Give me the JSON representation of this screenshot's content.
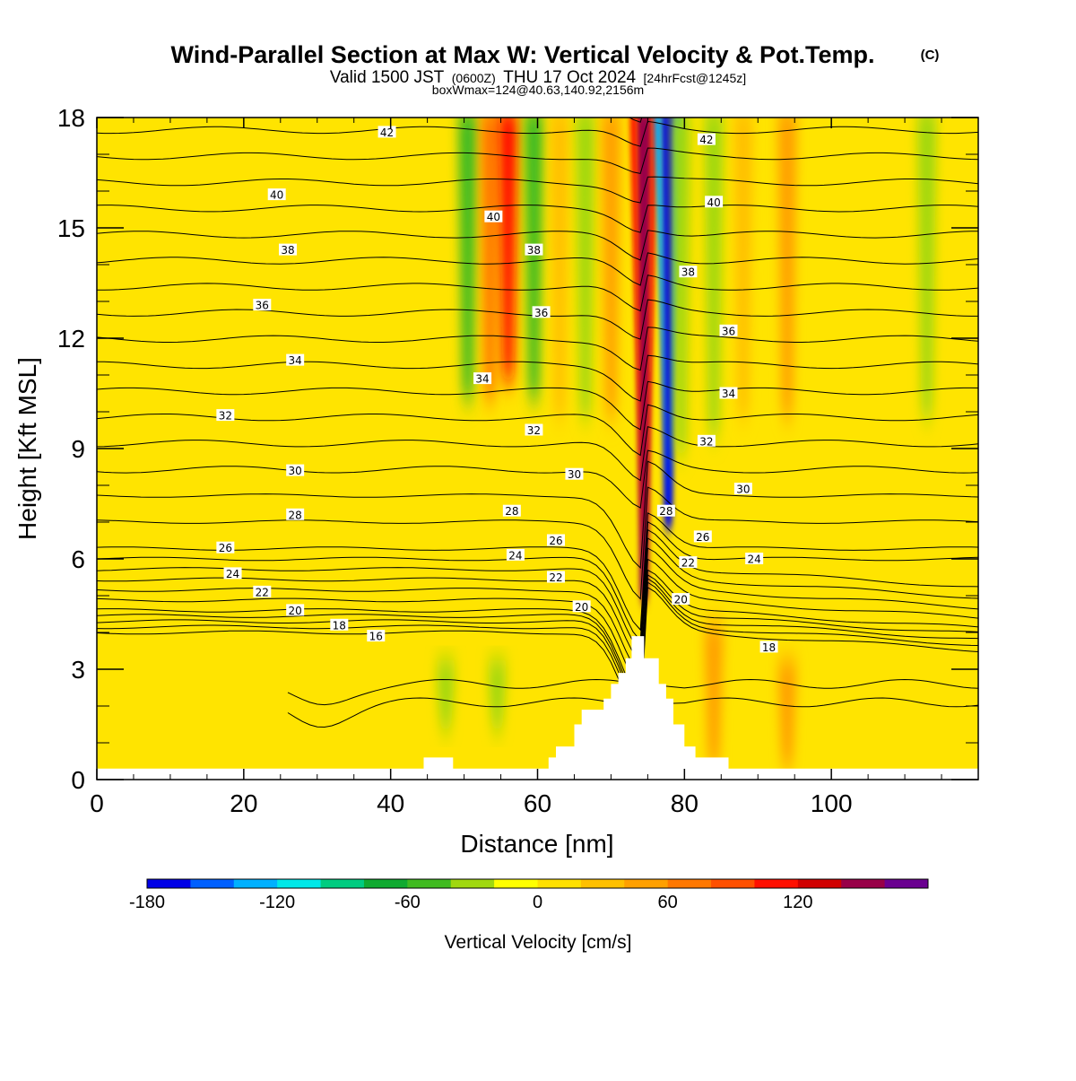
{
  "header": {
    "title": "Wind-Parallel Section at Max W: Vertical Velocity & Pot.Temp.",
    "copyright": "(C)",
    "valid_prefix": "Valid 1500 JST",
    "valid_utc": "(0600Z)",
    "valid_date": "THU 17 Oct 2024",
    "forecast": "[24hrFcst@1245z]",
    "box_info": "boxWmax=124@40.63,140.92,2156m"
  },
  "chart_data": {
    "type": "heatmap",
    "title": "Wind-Parallel Section at Max W: Vertical Velocity & Pot.Temp.",
    "xlabel": "Distance [nm]",
    "ylabel": "Height [Kft MSL]",
    "xlim": [
      0,
      120
    ],
    "ylim": [
      0,
      18
    ],
    "x_ticks": [
      0,
      20,
      40,
      60,
      80,
      100
    ],
    "y_ticks": [
      0,
      3,
      6,
      9,
      12,
      15,
      18
    ],
    "colorbar": {
      "label": "Vertical Velocity [cm/s]",
      "ticks": [
        -180,
        -120,
        -60,
        0,
        60,
        120
      ],
      "levels": [
        -180,
        -160,
        -140,
        -120,
        -100,
        -80,
        -60,
        -40,
        -20,
        0,
        20,
        40,
        60,
        80,
        100,
        120,
        140,
        160
      ],
      "colors": [
        "#0000e6",
        "#0060ff",
        "#00b0ff",
        "#00e8e8",
        "#00cc80",
        "#10aa30",
        "#40bb20",
        "#a0d810",
        "#ffff00",
        "#ffe000",
        "#ffc000",
        "#ffa000",
        "#ff7800",
        "#ff5000",
        "#ff1000",
        "#d00000",
        "#980048",
        "#6a0090"
      ]
    },
    "vertical_velocity_features": [
      {
        "x": 50.5,
        "z_top": 18,
        "z_bottom": 10.5,
        "w": -45
      },
      {
        "x": 53.5,
        "z_top": 18,
        "z_bottom": 10.5,
        "w": 60
      },
      {
        "x": 56.0,
        "z_top": 18,
        "z_bottom": 11,
        "w": 100
      },
      {
        "x": 59.5,
        "z_top": 18,
        "z_bottom": 10.5,
        "w": -50
      },
      {
        "x": 63.0,
        "z_top": 18,
        "z_bottom": 10,
        "w": 35
      },
      {
        "x": 66.5,
        "z_top": 18,
        "z_bottom": 10,
        "w": -30
      },
      {
        "x": 70.0,
        "z_top": 18,
        "z_bottom": 10,
        "w": 40
      },
      {
        "x": 74.5,
        "z_top": 18,
        "z_bottom": 5,
        "w": 155
      },
      {
        "x": 77.8,
        "z_top": 18,
        "z_bottom": 7,
        "w": -180
      },
      {
        "x": 79.5,
        "z_top": 18,
        "z_bottom": 9,
        "w": -40
      },
      {
        "x": 84.0,
        "z_top": 18,
        "z_bottom": 9.5,
        "w": -35
      },
      {
        "x": 88.0,
        "z_top": 18,
        "z_bottom": 10,
        "w": 35
      },
      {
        "x": 94.0,
        "z_top": 18,
        "z_bottom": 10,
        "w": 40
      },
      {
        "x": 113.0,
        "z_top": 18,
        "z_bottom": 10,
        "w": -35
      },
      {
        "x": 84.0,
        "z_top": 4,
        "z_bottom": 0.5,
        "w": 50
      },
      {
        "x": 94.0,
        "z_top": 3,
        "z_bottom": 0.5,
        "w": 45
      },
      {
        "x": 47.5,
        "z_top": 3,
        "z_bottom": 1.5,
        "w": -30
      },
      {
        "x": 54.5,
        "z_top": 3,
        "z_bottom": 1.5,
        "w": -30
      }
    ],
    "potential_temperature_contours": {
      "units": "C",
      "levels": [
        16,
        17,
        18,
        19,
        20,
        21,
        22,
        23,
        24,
        25,
        26,
        27,
        28,
        29,
        30,
        31,
        32,
        33,
        34,
        35,
        36,
        37,
        38,
        39,
        40,
        41,
        42,
        43
      ],
      "labels": [
        {
          "text": "42",
          "x": 39.5,
          "y": 17.6
        },
        {
          "text": "42",
          "x": 83.0,
          "y": 17.4
        },
        {
          "text": "40",
          "x": 24.5,
          "y": 15.9
        },
        {
          "text": "40",
          "x": 54.0,
          "y": 15.3
        },
        {
          "text": "40",
          "x": 84.0,
          "y": 15.7
        },
        {
          "text": "38",
          "x": 26.0,
          "y": 14.4
        },
        {
          "text": "38",
          "x": 59.5,
          "y": 14.4
        },
        {
          "text": "38",
          "x": 80.5,
          "y": 13.8
        },
        {
          "text": "36",
          "x": 22.5,
          "y": 12.9
        },
        {
          "text": "36",
          "x": 60.5,
          "y": 12.7
        },
        {
          "text": "36",
          "x": 86.0,
          "y": 12.2
        },
        {
          "text": "34",
          "x": 27.0,
          "y": 11.4
        },
        {
          "text": "34",
          "x": 52.5,
          "y": 10.9
        },
        {
          "text": "34",
          "x": 86.0,
          "y": 10.5
        },
        {
          "text": "32",
          "x": 17.5,
          "y": 9.9
        },
        {
          "text": "32",
          "x": 59.5,
          "y": 9.5
        },
        {
          "text": "32",
          "x": 83.0,
          "y": 9.2
        },
        {
          "text": "30",
          "x": 27.0,
          "y": 8.4
        },
        {
          "text": "30",
          "x": 65.0,
          "y": 8.3
        },
        {
          "text": "30",
          "x": 88.0,
          "y": 7.9
        },
        {
          "text": "28",
          "x": 27.0,
          "y": 7.2
        },
        {
          "text": "28",
          "x": 56.5,
          "y": 7.3
        },
        {
          "text": "28",
          "x": 77.5,
          "y": 7.3
        },
        {
          "text": "26",
          "x": 17.5,
          "y": 6.3
        },
        {
          "text": "26",
          "x": 62.5,
          "y": 6.5
        },
        {
          "text": "26",
          "x": 82.5,
          "y": 6.6
        },
        {
          "text": "24",
          "x": 18.5,
          "y": 5.6
        },
        {
          "text": "24",
          "x": 57.0,
          "y": 6.1
        },
        {
          "text": "24",
          "x": 89.5,
          "y": 6.0
        },
        {
          "text": "22",
          "x": 22.5,
          "y": 5.1
        },
        {
          "text": "22",
          "x": 62.5,
          "y": 5.5
        },
        {
          "text": "22",
          "x": 80.5,
          "y": 5.9
        },
        {
          "text": "20",
          "x": 27.0,
          "y": 4.6
        },
        {
          "text": "20",
          "x": 66.0,
          "y": 4.7
        },
        {
          "text": "20",
          "x": 79.5,
          "y": 4.9
        },
        {
          "text": "18",
          "x": 33.0,
          "y": 4.2
        },
        {
          "text": "18",
          "x": 91.5,
          "y": 3.6
        },
        {
          "text": "16",
          "x": 38.0,
          "y": 3.9
        }
      ]
    },
    "terrain": [
      [
        0,
        0.3
      ],
      [
        44.5,
        0.3
      ],
      [
        44.5,
        0.6
      ],
      [
        48.5,
        0.6
      ],
      [
        48.5,
        0.3
      ],
      [
        61.5,
        0.3
      ],
      [
        61.5,
        0.6
      ],
      [
        62.5,
        0.6
      ],
      [
        62.5,
        0.9
      ],
      [
        65.0,
        0.9
      ],
      [
        65.0,
        1.5
      ],
      [
        66.0,
        1.5
      ],
      [
        66.0,
        1.9
      ],
      [
        69.0,
        1.9
      ],
      [
        69.0,
        2.2
      ],
      [
        70.0,
        2.2
      ],
      [
        70.0,
        2.6
      ],
      [
        71.0,
        2.6
      ],
      [
        71.0,
        2.9
      ],
      [
        72.0,
        2.9
      ],
      [
        72.0,
        3.3
      ],
      [
        72.8,
        3.3
      ],
      [
        72.8,
        3.9
      ],
      [
        74.5,
        3.9
      ],
      [
        74.5,
        3.3
      ],
      [
        76.5,
        3.3
      ],
      [
        76.5,
        2.6
      ],
      [
        77.5,
        2.6
      ],
      [
        77.5,
        2.2
      ],
      [
        78.5,
        2.2
      ],
      [
        78.5,
        1.5
      ],
      [
        80.0,
        1.5
      ],
      [
        80.0,
        0.9
      ],
      [
        81.5,
        0.9
      ],
      [
        81.5,
        0.6
      ],
      [
        86.0,
        0.6
      ],
      [
        86.0,
        0.3
      ],
      [
        120,
        0.3
      ]
    ]
  }
}
